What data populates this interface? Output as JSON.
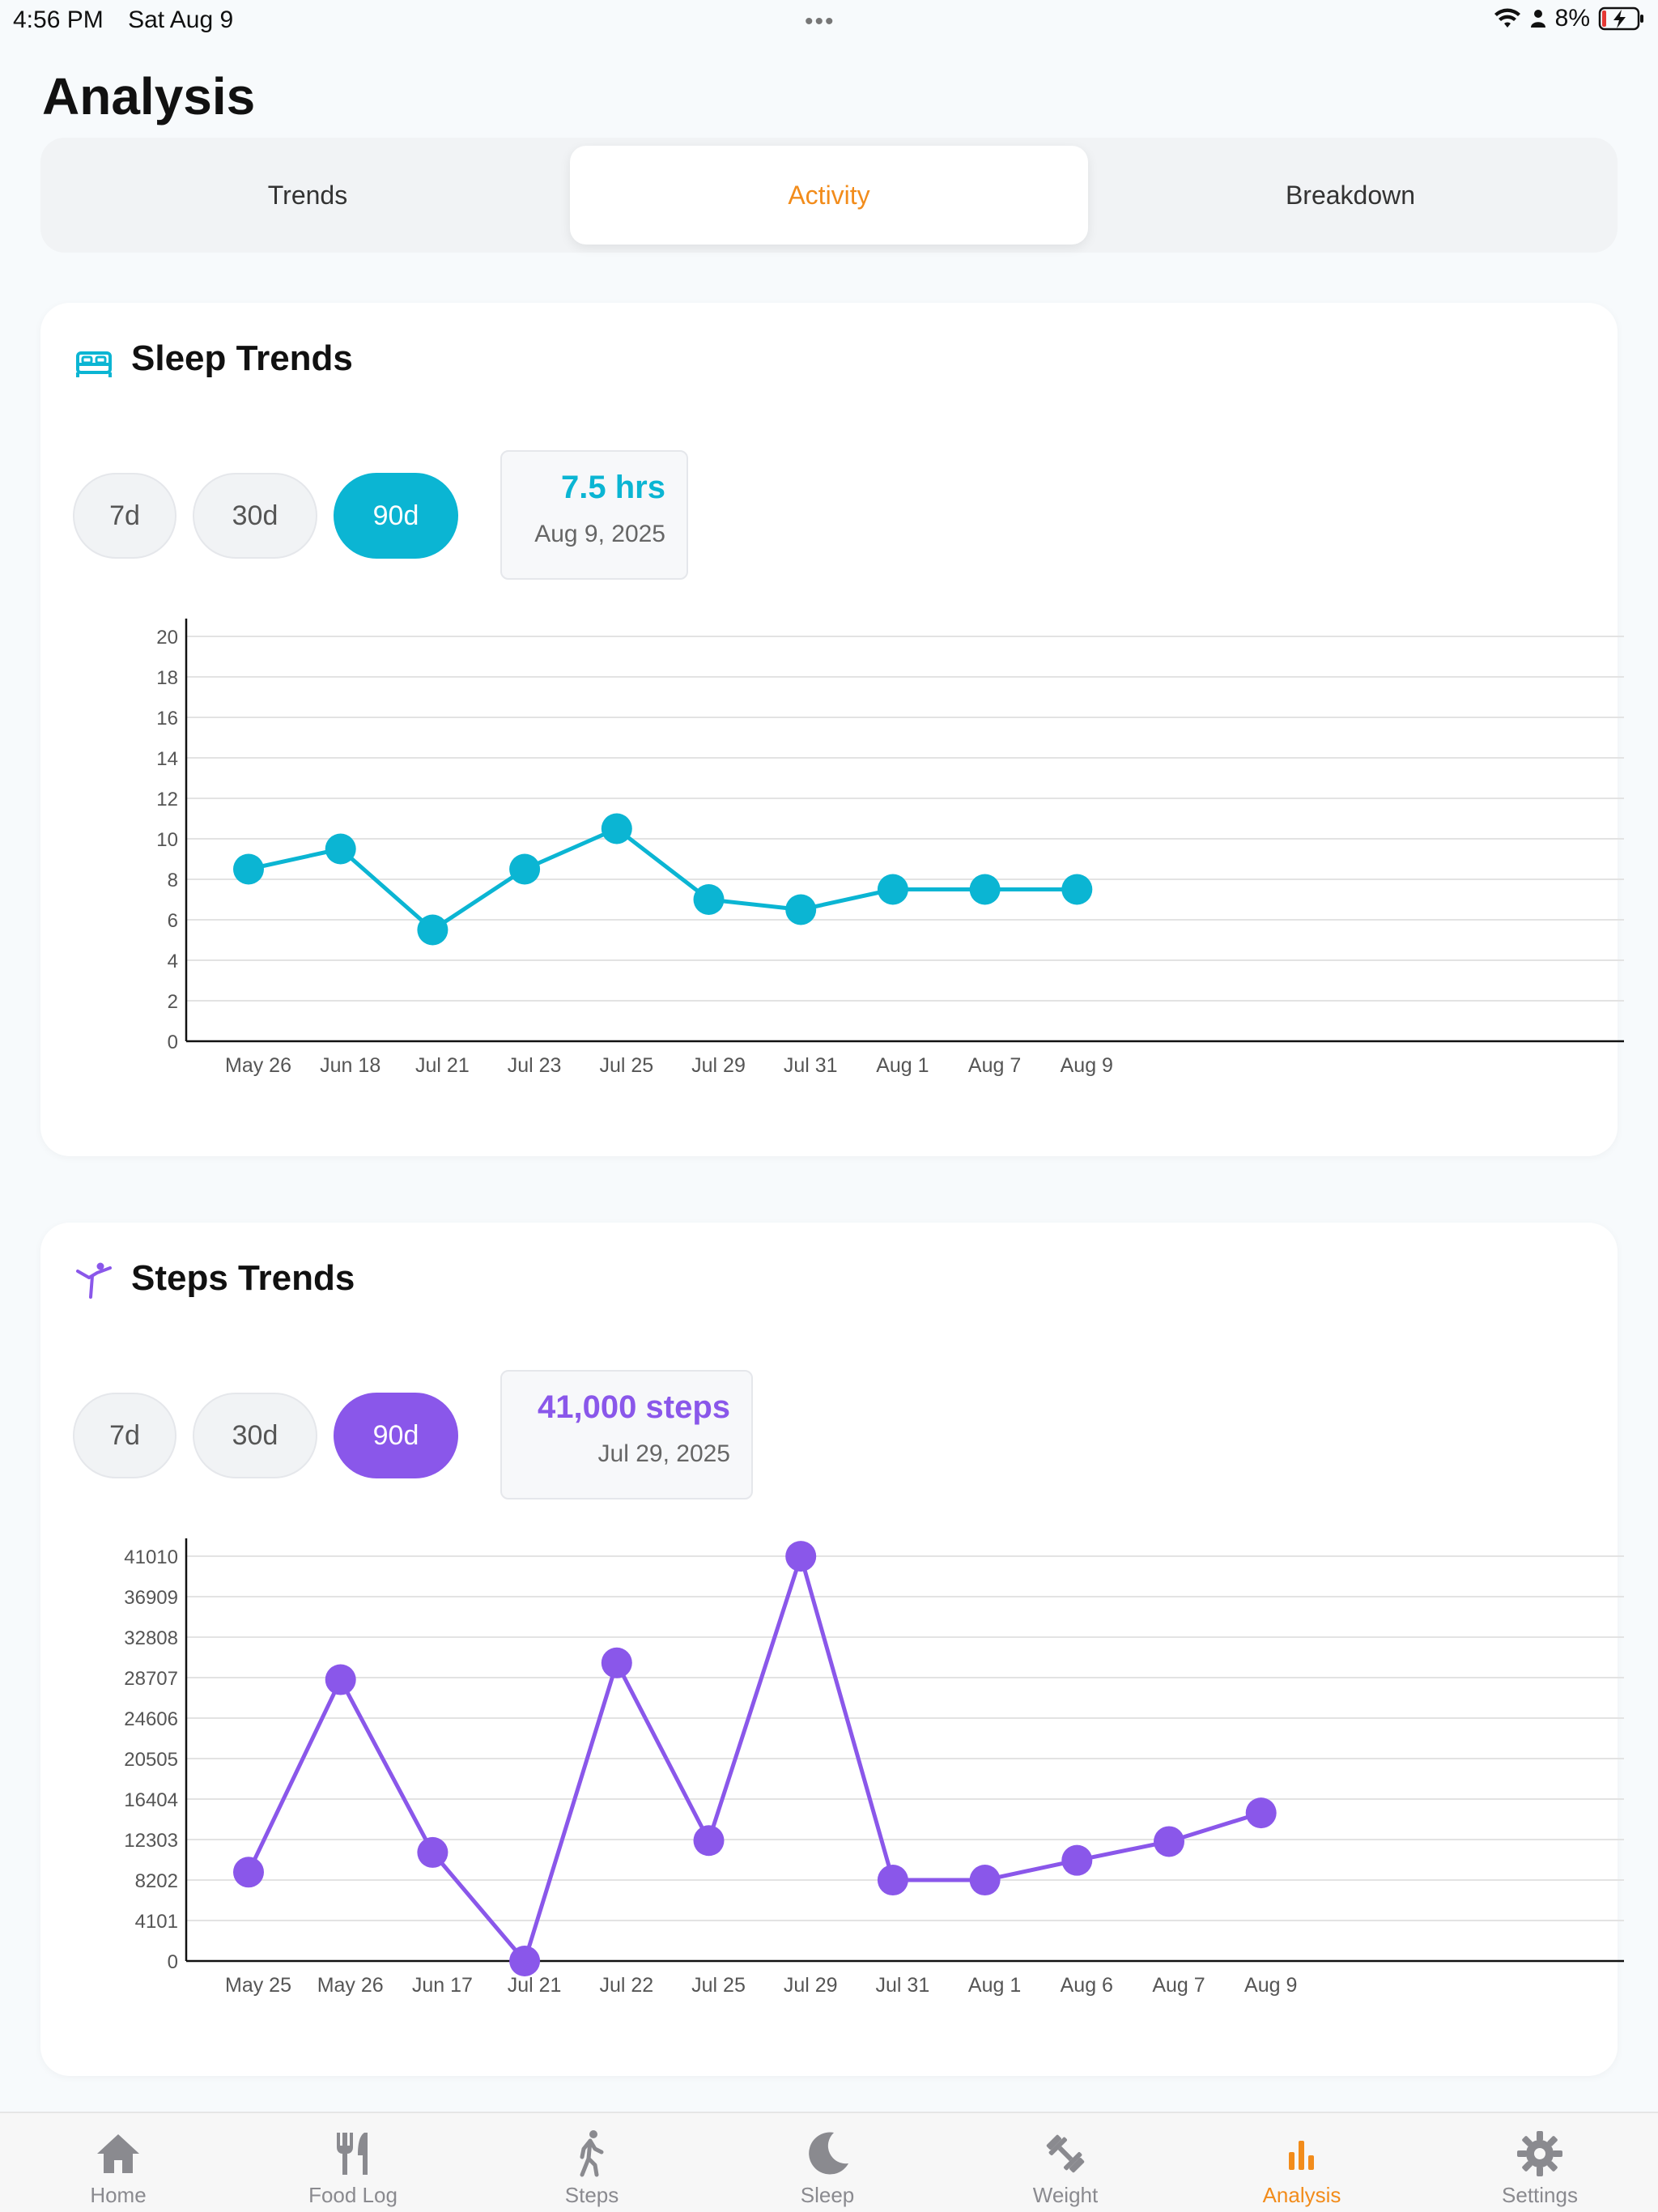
{
  "status": {
    "time": "4:56 PM",
    "date": "Sat Aug 9",
    "battery": "8%"
  },
  "page": {
    "title": "Analysis"
  },
  "tabs": [
    {
      "label": "Trends",
      "active": false
    },
    {
      "label": "Activity",
      "active": true
    },
    {
      "label": "Breakdown",
      "active": false
    }
  ],
  "sleep_card": {
    "title": "Sleep Trends",
    "icon": "bed-icon",
    "ranges": [
      "7d",
      "30d",
      "90d"
    ],
    "selected_range": "90d",
    "tooltip": {
      "value": "7.5 hrs",
      "date": "Aug 9, 2025"
    },
    "color": "#0bb5d3"
  },
  "steps_card": {
    "title": "Steps Trends",
    "icon": "walking-icon",
    "ranges": [
      "7d",
      "30d",
      "90d"
    ],
    "selected_range": "90d",
    "tooltip": {
      "value": "41,000 steps",
      "date": "Jul 29, 2025"
    },
    "color": "#8a57ea"
  },
  "chart_data": [
    {
      "type": "line",
      "title": "Sleep Trends",
      "categories": [
        "May 26",
        "Jun 18",
        "Jul 21",
        "Jul 23",
        "Jul 25",
        "Jul 29",
        "Jul 31",
        "Aug 1",
        "Aug 7",
        "Aug 9"
      ],
      "values": [
        8.5,
        9.5,
        5.5,
        8.5,
        10.5,
        7,
        6.5,
        7.5,
        7.5,
        7.5
      ],
      "ylim": [
        0,
        20
      ],
      "yticks": [
        "0",
        "2",
        "4",
        "6",
        "8",
        "10",
        "12",
        "14",
        "16",
        "18",
        "20"
      ],
      "grid": true,
      "color": "#0bb5d3"
    },
    {
      "type": "line",
      "title": "Steps Trends",
      "categories": [
        "May 25",
        "May 26",
        "Jun 17",
        "Jul 21",
        "Jul 22",
        "Jul 25",
        "Jul 29",
        "Jul 31",
        "Aug 1",
        "Aug 6",
        "Aug 7",
        "Aug 9"
      ],
      "values": [
        9000,
        28500,
        11000,
        0,
        30200,
        12200,
        41000,
        8200,
        8200,
        10200,
        12100,
        15000
      ],
      "ylim": [
        0,
        41010
      ],
      "yticks": [
        "0",
        "4101",
        "8202",
        "12303",
        "16404",
        "20505",
        "24606",
        "28707",
        "32808",
        "36909",
        "41010"
      ],
      "grid": true,
      "color": "#8a57ea"
    }
  ],
  "tabbar": [
    {
      "label": "Home",
      "icon": "house-icon",
      "active": false
    },
    {
      "label": "Food Log",
      "icon": "fork-knife-icon",
      "active": false
    },
    {
      "label": "Steps",
      "icon": "walking-icon",
      "active": false
    },
    {
      "label": "Sleep",
      "icon": "moon-icon",
      "active": false
    },
    {
      "label": "Weight",
      "icon": "dumbbell-icon",
      "active": false
    },
    {
      "label": "Analysis",
      "icon": "bar-chart-icon",
      "active": true
    },
    {
      "label": "Settings",
      "icon": "gear-icon",
      "active": false
    }
  ]
}
